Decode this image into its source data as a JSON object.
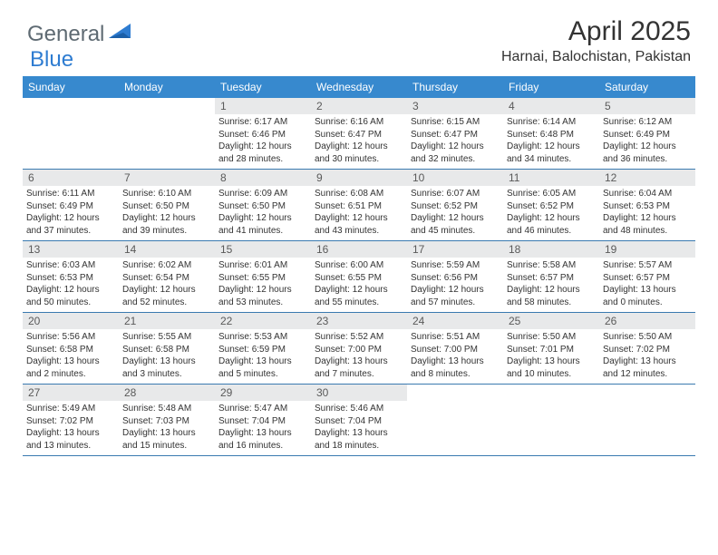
{
  "brand": {
    "text1": "General",
    "text2": "Blue"
  },
  "title": "April 2025",
  "location": "Harnai, Balochistan, Pakistan",
  "colors": {
    "header_bg": "#3789ce",
    "header_text": "#ffffff",
    "daynum_bg": "#e8e9ea",
    "border": "#3a7ab0",
    "brand_gray": "#5e6a72",
    "brand_blue": "#2e7cd1"
  },
  "day_headers": [
    "Sunday",
    "Monday",
    "Tuesday",
    "Wednesday",
    "Thursday",
    "Friday",
    "Saturday"
  ],
  "weeks": [
    [
      null,
      null,
      {
        "n": "1",
        "sr": "6:17 AM",
        "ss": "6:46 PM",
        "dl": "12 hours and 28 minutes."
      },
      {
        "n": "2",
        "sr": "6:16 AM",
        "ss": "6:47 PM",
        "dl": "12 hours and 30 minutes."
      },
      {
        "n": "3",
        "sr": "6:15 AM",
        "ss": "6:47 PM",
        "dl": "12 hours and 32 minutes."
      },
      {
        "n": "4",
        "sr": "6:14 AM",
        "ss": "6:48 PM",
        "dl": "12 hours and 34 minutes."
      },
      {
        "n": "5",
        "sr": "6:12 AM",
        "ss": "6:49 PM",
        "dl": "12 hours and 36 minutes."
      }
    ],
    [
      {
        "n": "6",
        "sr": "6:11 AM",
        "ss": "6:49 PM",
        "dl": "12 hours and 37 minutes."
      },
      {
        "n": "7",
        "sr": "6:10 AM",
        "ss": "6:50 PM",
        "dl": "12 hours and 39 minutes."
      },
      {
        "n": "8",
        "sr": "6:09 AM",
        "ss": "6:50 PM",
        "dl": "12 hours and 41 minutes."
      },
      {
        "n": "9",
        "sr": "6:08 AM",
        "ss": "6:51 PM",
        "dl": "12 hours and 43 minutes."
      },
      {
        "n": "10",
        "sr": "6:07 AM",
        "ss": "6:52 PM",
        "dl": "12 hours and 45 minutes."
      },
      {
        "n": "11",
        "sr": "6:05 AM",
        "ss": "6:52 PM",
        "dl": "12 hours and 46 minutes."
      },
      {
        "n": "12",
        "sr": "6:04 AM",
        "ss": "6:53 PM",
        "dl": "12 hours and 48 minutes."
      }
    ],
    [
      {
        "n": "13",
        "sr": "6:03 AM",
        "ss": "6:53 PM",
        "dl": "12 hours and 50 minutes."
      },
      {
        "n": "14",
        "sr": "6:02 AM",
        "ss": "6:54 PM",
        "dl": "12 hours and 52 minutes."
      },
      {
        "n": "15",
        "sr": "6:01 AM",
        "ss": "6:55 PM",
        "dl": "12 hours and 53 minutes."
      },
      {
        "n": "16",
        "sr": "6:00 AM",
        "ss": "6:55 PM",
        "dl": "12 hours and 55 minutes."
      },
      {
        "n": "17",
        "sr": "5:59 AM",
        "ss": "6:56 PM",
        "dl": "12 hours and 57 minutes."
      },
      {
        "n": "18",
        "sr": "5:58 AM",
        "ss": "6:57 PM",
        "dl": "12 hours and 58 minutes."
      },
      {
        "n": "19",
        "sr": "5:57 AM",
        "ss": "6:57 PM",
        "dl": "13 hours and 0 minutes."
      }
    ],
    [
      {
        "n": "20",
        "sr": "5:56 AM",
        "ss": "6:58 PM",
        "dl": "13 hours and 2 minutes."
      },
      {
        "n": "21",
        "sr": "5:55 AM",
        "ss": "6:58 PM",
        "dl": "13 hours and 3 minutes."
      },
      {
        "n": "22",
        "sr": "5:53 AM",
        "ss": "6:59 PM",
        "dl": "13 hours and 5 minutes."
      },
      {
        "n": "23",
        "sr": "5:52 AM",
        "ss": "7:00 PM",
        "dl": "13 hours and 7 minutes."
      },
      {
        "n": "24",
        "sr": "5:51 AM",
        "ss": "7:00 PM",
        "dl": "13 hours and 8 minutes."
      },
      {
        "n": "25",
        "sr": "5:50 AM",
        "ss": "7:01 PM",
        "dl": "13 hours and 10 minutes."
      },
      {
        "n": "26",
        "sr": "5:50 AM",
        "ss": "7:02 PM",
        "dl": "13 hours and 12 minutes."
      }
    ],
    [
      {
        "n": "27",
        "sr": "5:49 AM",
        "ss": "7:02 PM",
        "dl": "13 hours and 13 minutes."
      },
      {
        "n": "28",
        "sr": "5:48 AM",
        "ss": "7:03 PM",
        "dl": "13 hours and 15 minutes."
      },
      {
        "n": "29",
        "sr": "5:47 AM",
        "ss": "7:04 PM",
        "dl": "13 hours and 16 minutes."
      },
      {
        "n": "30",
        "sr": "5:46 AM",
        "ss": "7:04 PM",
        "dl": "13 hours and 18 minutes."
      },
      null,
      null,
      null
    ]
  ],
  "labels": {
    "sunrise": "Sunrise:",
    "sunset": "Sunset:",
    "daylight": "Daylight:"
  }
}
